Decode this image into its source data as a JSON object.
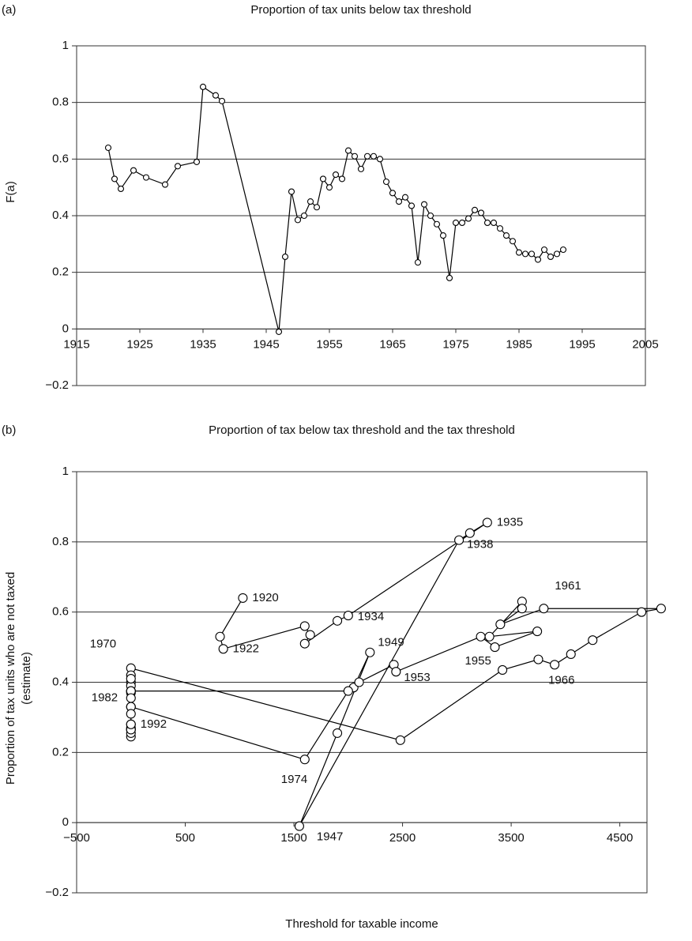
{
  "chart_data": [
    {
      "type": "line",
      "panel_label": "(a)",
      "title": "Proportion of tax units below tax threshold",
      "ylabel": "F(a)",
      "x": [
        1920,
        1921,
        1922,
        1924,
        1926,
        1929,
        1931,
        1934,
        1935,
        1937,
        1938,
        1947,
        1948,
        1949,
        1950,
        1951,
        1952,
        1953,
        1954,
        1955,
        1956,
        1957,
        1958,
        1959,
        1960,
        1961,
        1962,
        1963,
        1964,
        1965,
        1966,
        1967,
        1968,
        1969,
        1970,
        1971,
        1972,
        1973,
        1974,
        1975,
        1976,
        1977,
        1978,
        1979,
        1980,
        1981,
        1982,
        1983,
        1984,
        1985,
        1986,
        1987,
        1988,
        1989,
        1990,
        1991,
        1992
      ],
      "values": [
        0.64,
        0.53,
        0.495,
        0.56,
        0.535,
        0.51,
        0.575,
        0.59,
        0.855,
        0.825,
        0.805,
        -0.01,
        0.255,
        0.485,
        0.385,
        0.4,
        0.45,
        0.43,
        0.53,
        0.5,
        0.545,
        0.53,
        0.63,
        0.61,
        0.565,
        0.61,
        0.61,
        0.6,
        0.52,
        0.48,
        0.45,
        0.465,
        0.435,
        0.235,
        0.44,
        0.4,
        0.37,
        0.33,
        0.18,
        0.375,
        0.375,
        0.39,
        0.42,
        0.41,
        0.375,
        0.375,
        0.355,
        0.33,
        0.31,
        0.27,
        0.265,
        0.265,
        0.245,
        0.28,
        0.255,
        0.265,
        0.28
      ],
      "color": "#000000",
      "xlim": [
        1915,
        2005
      ],
      "xticks": [
        1915,
        1925,
        1935,
        1945,
        1955,
        1965,
        1975,
        1985,
        1995,
        2005
      ],
      "ylim": [
        -0.2,
        1
      ],
      "yticks": [
        {
          "value": -0.2,
          "label": "−0.2"
        },
        0,
        0.2,
        0.4,
        0.6,
        0.8,
        1
      ],
      "grid": true
    },
    {
      "type": "line",
      "panel_label": "(b)",
      "title": "Proportion of tax below tax threshold and the tax threshold",
      "ylabel": [
        "Proportion of tax units who are not taxed",
        "(estimate)"
      ],
      "xlabel": "Threshold for taxable income",
      "x": [
        1030,
        820,
        850,
        1600,
        1650,
        1600,
        1900,
        2000,
        3280,
        3120,
        3020,
        1550,
        1900,
        2200,
        2050,
        2100,
        2420,
        2440,
        3220,
        3350,
        3740,
        3300,
        3600,
        3600,
        3400,
        3800,
        4880,
        4700,
        4250,
        4050,
        3900,
        3750,
        3420,
        2480,
        0,
        0,
        0,
        0,
        1600,
        2000,
        0,
        0,
        0,
        0,
        0,
        0,
        0,
        0,
        0,
        0,
        0,
        0,
        0,
        0,
        0,
        0,
        0
      ],
      "values": [
        0.64,
        0.53,
        0.495,
        0.56,
        0.535,
        0.51,
        0.575,
        0.59,
        0.855,
        0.825,
        0.805,
        -0.01,
        0.255,
        0.485,
        0.385,
        0.4,
        0.45,
        0.43,
        0.53,
        0.5,
        0.545,
        0.53,
        0.63,
        0.61,
        0.565,
        0.61,
        0.61,
        0.6,
        0.52,
        0.48,
        0.45,
        0.465,
        0.435,
        0.235,
        0.44,
        0.4,
        0.37,
        0.33,
        0.18,
        0.375,
        0.375,
        0.39,
        0.42,
        0.41,
        0.375,
        0.375,
        0.355,
        0.33,
        0.31,
        0.27,
        0.265,
        0.265,
        0.245,
        0.28,
        0.255,
        0.265,
        0.28
      ],
      "point_labels": [
        "1920",
        null,
        "1922",
        null,
        null,
        null,
        null,
        "1934",
        "1935",
        null,
        "1938",
        "1947",
        null,
        "1949",
        null,
        null,
        null,
        "1953",
        null,
        "1955",
        null,
        null,
        null,
        null,
        null,
        "1961",
        null,
        null,
        null,
        null,
        "1966",
        null,
        null,
        null,
        "1970",
        null,
        null,
        null,
        "1974",
        null,
        null,
        null,
        null,
        null,
        null,
        null,
        "1982",
        null,
        null,
        null,
        null,
        null,
        null,
        null,
        null,
        null,
        "1992"
      ],
      "color": "#000000",
      "xlim": [
        -500,
        4750
      ],
      "xticks": [
        {
          "value": -500,
          "label": "−500"
        },
        500,
        1500,
        2500,
        3500,
        4500
      ],
      "ylim": [
        -0.2,
        1
      ],
      "yticks": [
        {
          "value": -0.2,
          "label": "−0.2"
        },
        0,
        0.2,
        0.4,
        0.6,
        0.8,
        1
      ],
      "grid": true
    }
  ]
}
